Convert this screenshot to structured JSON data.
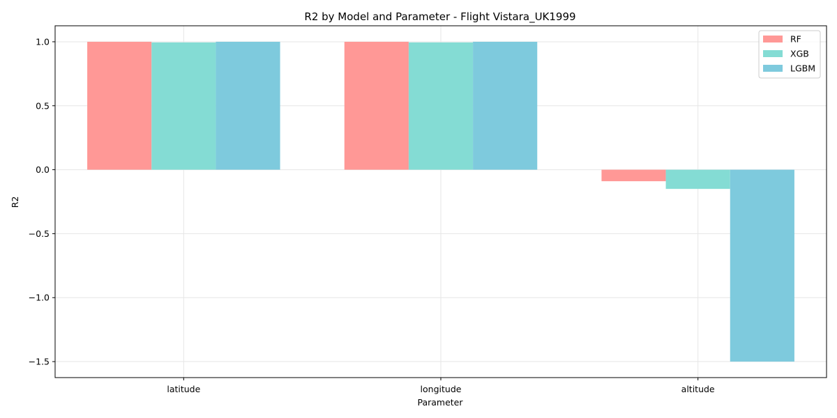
{
  "chart_data": {
    "type": "bar",
    "title": "R2 by Model and Parameter - Flight Vistara_UK1999",
    "xlabel": "Parameter",
    "ylabel": "R2",
    "categories": [
      "latitude",
      "longitude",
      "altitude"
    ],
    "series": [
      {
        "name": "RF",
        "color": "#ff9896",
        "values": [
          1.0,
          1.0,
          -0.09
        ]
      },
      {
        "name": "XGB",
        "color": "#84dcd4",
        "values": [
          0.995,
          0.995,
          -0.15
        ]
      },
      {
        "name": "LGBM",
        "color": "#7ecadd",
        "values": [
          1.0,
          1.0,
          -1.5
        ]
      }
    ],
    "ylim": [
      -1.625,
      1.125
    ],
    "yticks": [
      1.0,
      0.5,
      0.0,
      -0.5,
      -1.0,
      -1.5
    ],
    "ytick_labels": [
      "1.0",
      "0.5",
      "0.0",
      "−0.5",
      "−1.0",
      "−1.5"
    ],
    "grid": true,
    "legend_position": "top-right"
  }
}
